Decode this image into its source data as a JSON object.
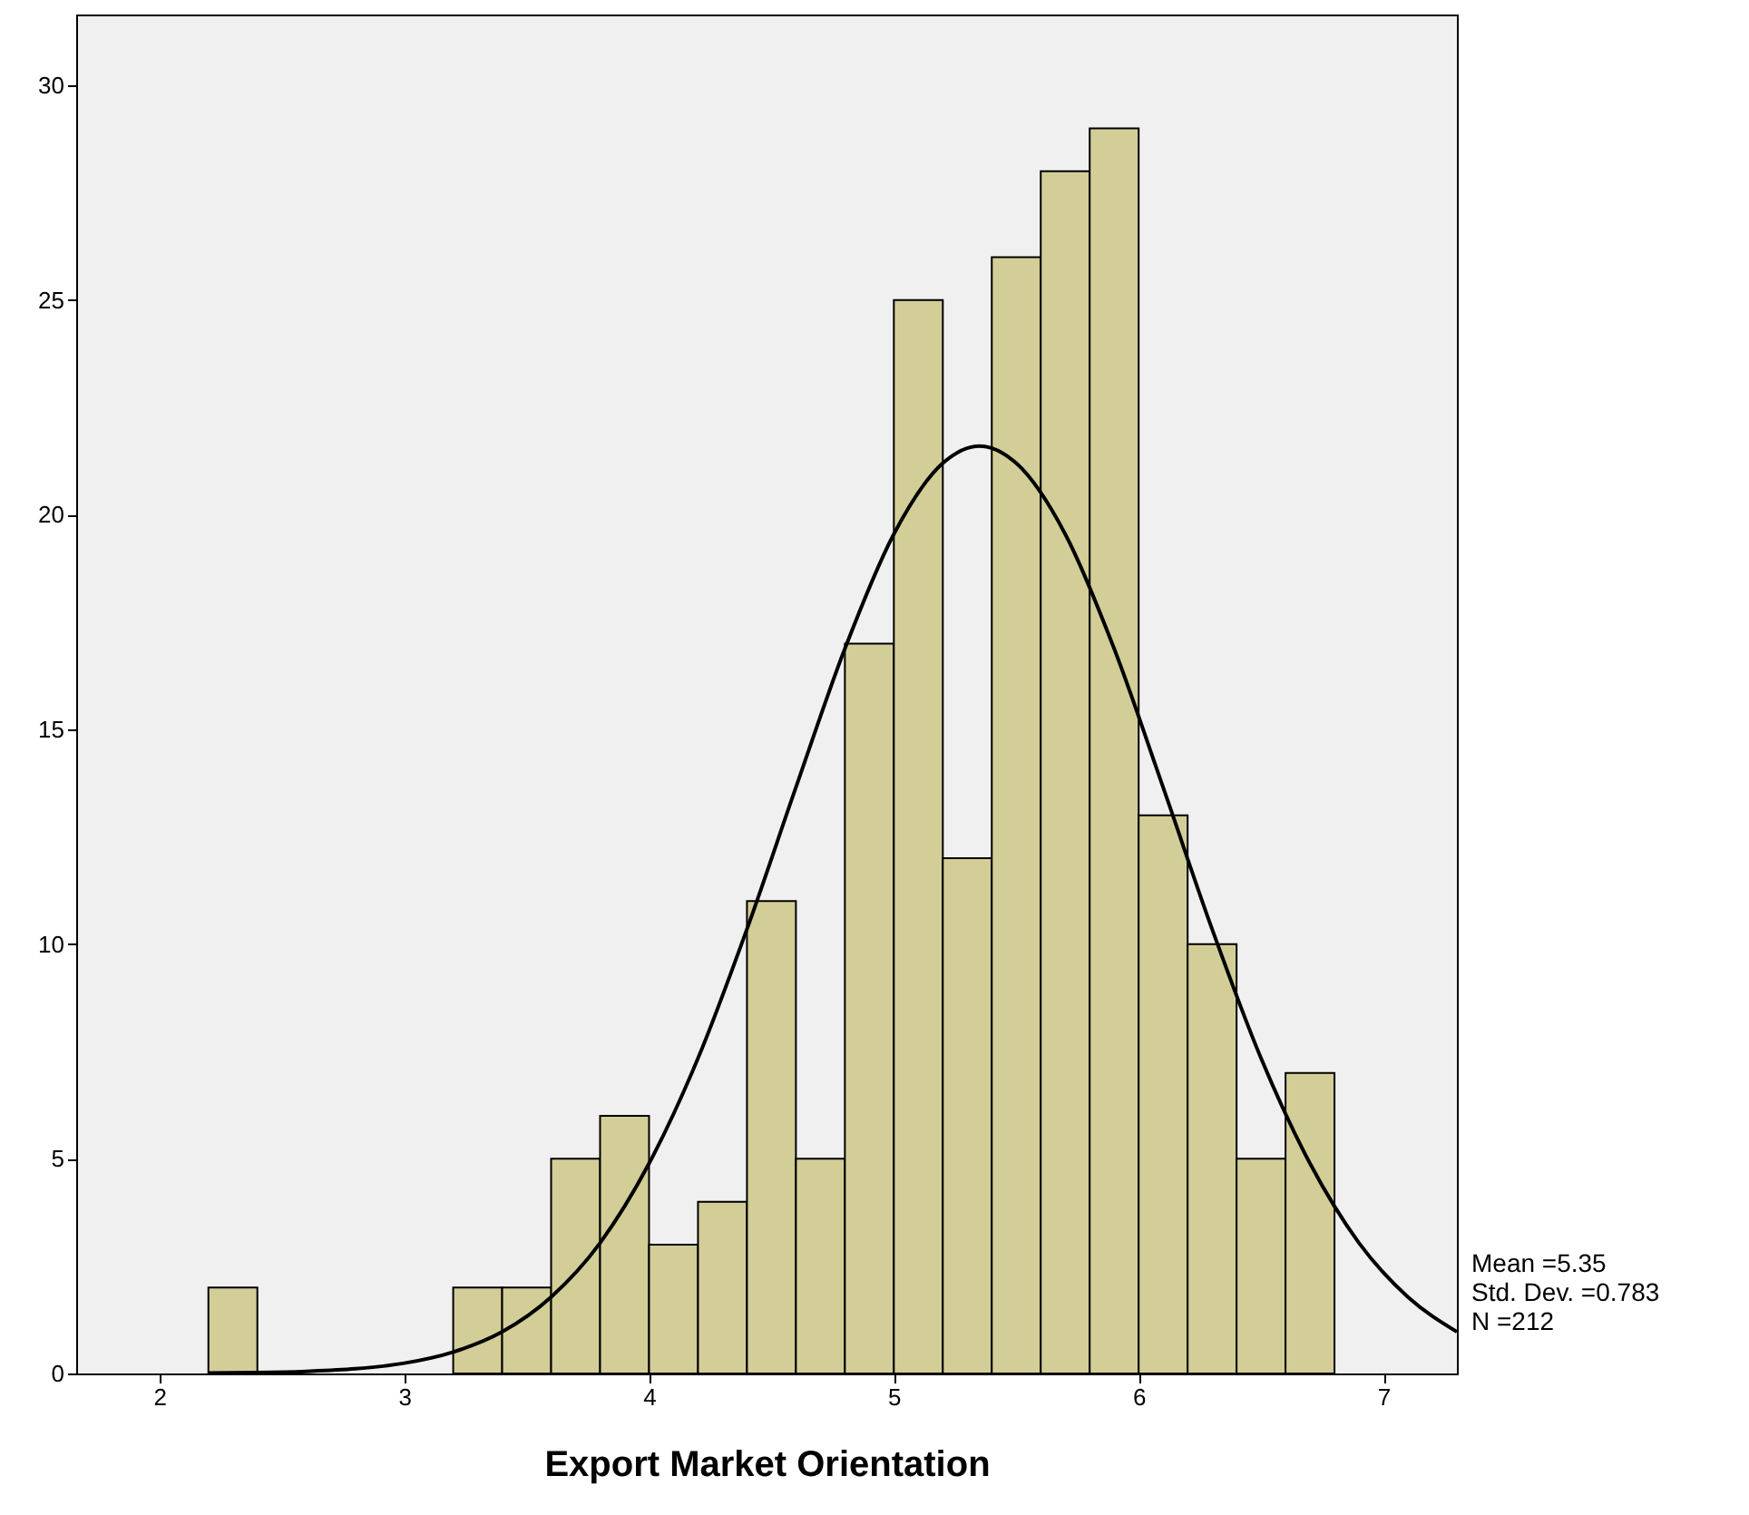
{
  "chart_data": {
    "type": "histogram",
    "xlabel": "Export Market Orientation",
    "bins": [
      2.2,
      2.4,
      2.6,
      2.8,
      3.0,
      3.2,
      3.4,
      3.6,
      3.8,
      4.0,
      4.2,
      4.4,
      4.6,
      4.8,
      5.0,
      5.2,
      5.4,
      5.6,
      5.8,
      6.0,
      6.2,
      6.4,
      6.6,
      6.8
    ],
    "values": [
      2,
      0,
      0,
      0,
      0,
      2,
      2,
      5,
      6,
      3,
      4,
      11,
      5,
      17,
      25,
      12,
      26,
      28,
      29,
      13,
      10,
      5,
      7
    ],
    "color": "#d3ce97",
    "series": [
      {
        "type": "line",
        "color": "#000000",
        "x": [
          2.2,
          2.4,
          2.6,
          2.8,
          3.0,
          3.2,
          3.4,
          3.6,
          3.8,
          4.0,
          4.2,
          4.4,
          4.6,
          4.8,
          5.0,
          5.2,
          5.35,
          5.5,
          5.7,
          5.9,
          6.1,
          6.3,
          6.5,
          6.7,
          6.9,
          7.1,
          7.3
        ],
        "values": [
          0.01,
          0.02,
          0.05,
          0.11,
          0.24,
          0.5,
          0.97,
          1.78,
          3.04,
          4.89,
          7.34,
          10.35,
          13.65,
          16.88,
          19.55,
          21.2,
          21.6,
          21.2,
          19.55,
          16.88,
          13.65,
          10.35,
          7.34,
          4.89,
          3.04,
          1.78,
          0.97
        ]
      }
    ],
    "xlim": [
      1.66,
      7.3
    ],
    "ylim": [
      0,
      31.65
    ],
    "xticks": [
      2,
      3,
      4,
      5,
      6,
      7
    ],
    "yticks": [
      0,
      5,
      10,
      15,
      20,
      25,
      30
    ],
    "grid": false,
    "annotations": [
      "Mean =5.35",
      "Std. Dev. =0.783",
      "N =212"
    ]
  }
}
